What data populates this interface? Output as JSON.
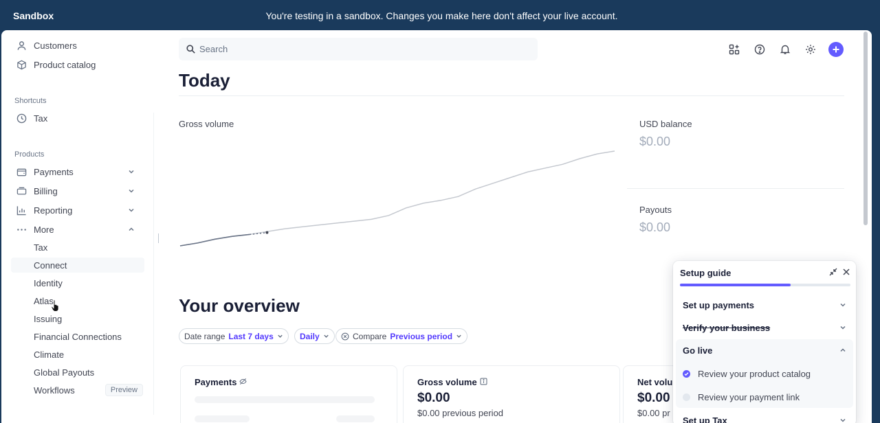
{
  "banner": {
    "tag": "Sandbox",
    "message": "You're testing in a sandbox. Changes you make here don't affect your live account."
  },
  "sidebar": {
    "top_items": [
      {
        "label": "Customers",
        "icon": "user-icon"
      },
      {
        "label": "Product catalog",
        "icon": "box-icon"
      }
    ],
    "shortcuts_label": "Shortcuts",
    "shortcuts": [
      {
        "label": "Tax",
        "icon": "clock-icon"
      }
    ],
    "products_label": "Products",
    "products": [
      {
        "label": "Payments",
        "icon": "wallet-icon",
        "expanded": false
      },
      {
        "label": "Billing",
        "icon": "billing-icon",
        "expanded": false
      },
      {
        "label": "Reporting",
        "icon": "bar-chart-icon",
        "expanded": false
      },
      {
        "label": "More",
        "icon": "more-dots-icon",
        "expanded": true
      }
    ],
    "more_items": [
      "Tax",
      "Connect",
      "Identity",
      "Atlas",
      "Issuing",
      "Financial Connections",
      "Climate",
      "Global Payouts",
      "Workflows"
    ],
    "workflows_badge": "Preview"
  },
  "header": {
    "search_placeholder": "Search",
    "icons": [
      "apps-icon",
      "help-icon",
      "bell-icon",
      "gear-icon",
      "plus-icon"
    ],
    "accent": "#635bff"
  },
  "today": {
    "title": "Today",
    "gross_volume_label": "Gross volume",
    "usd_balance_label": "USD balance",
    "usd_balance_value": "$0.00",
    "payouts_label": "Payouts",
    "payouts_value": "$0.00"
  },
  "chart_data": {
    "type": "line",
    "title": "Gross volume",
    "series": [
      {
        "values": [
          0.0,
          0.03,
          0.07,
          0.1,
          0.12,
          0.15,
          0.18,
          0.2,
          0.22,
          0.24,
          0.26,
          0.28,
          0.32,
          0.4,
          0.45,
          0.48,
          0.52,
          0.6,
          0.66,
          0.72,
          0.78,
          0.82,
          0.86,
          0.92,
          0.97,
          1.0
        ]
      },
      {
        "values": [
          0.0,
          0.03,
          0.07,
          0.1,
          0.12,
          0.14
        ]
      }
    ],
    "grid": false,
    "legend": "none"
  },
  "overview": {
    "title": "Your overview",
    "filters": {
      "date_range_label": "Date range",
      "date_range_value": "Last 7 days",
      "interval_value": "Daily",
      "compare_label": "Compare",
      "compare_value": "Previous period"
    },
    "cards": [
      {
        "title": "Payments",
        "icon": "eye-off-icon"
      },
      {
        "title": "Gross volume",
        "icon": "info-icon",
        "value": "$0.00",
        "sub": "$0.00 previous period"
      },
      {
        "title": "Net volu",
        "value": "$0.00",
        "sub": "$0.00 pr"
      }
    ]
  },
  "setup_guide": {
    "title": "Setup guide",
    "progress": 0.65,
    "groups": [
      {
        "label": "Set up payments",
        "completed": false,
        "expanded": false
      },
      {
        "label": "Verify your business",
        "completed": true,
        "expanded": false
      },
      {
        "label": "Go live",
        "completed": false,
        "expanded": true
      }
    ],
    "tasks": [
      {
        "label": "Review your product catalog",
        "done": true
      },
      {
        "label": "Review your payment link",
        "done": false
      }
    ],
    "next_group": "Set up Tax"
  }
}
